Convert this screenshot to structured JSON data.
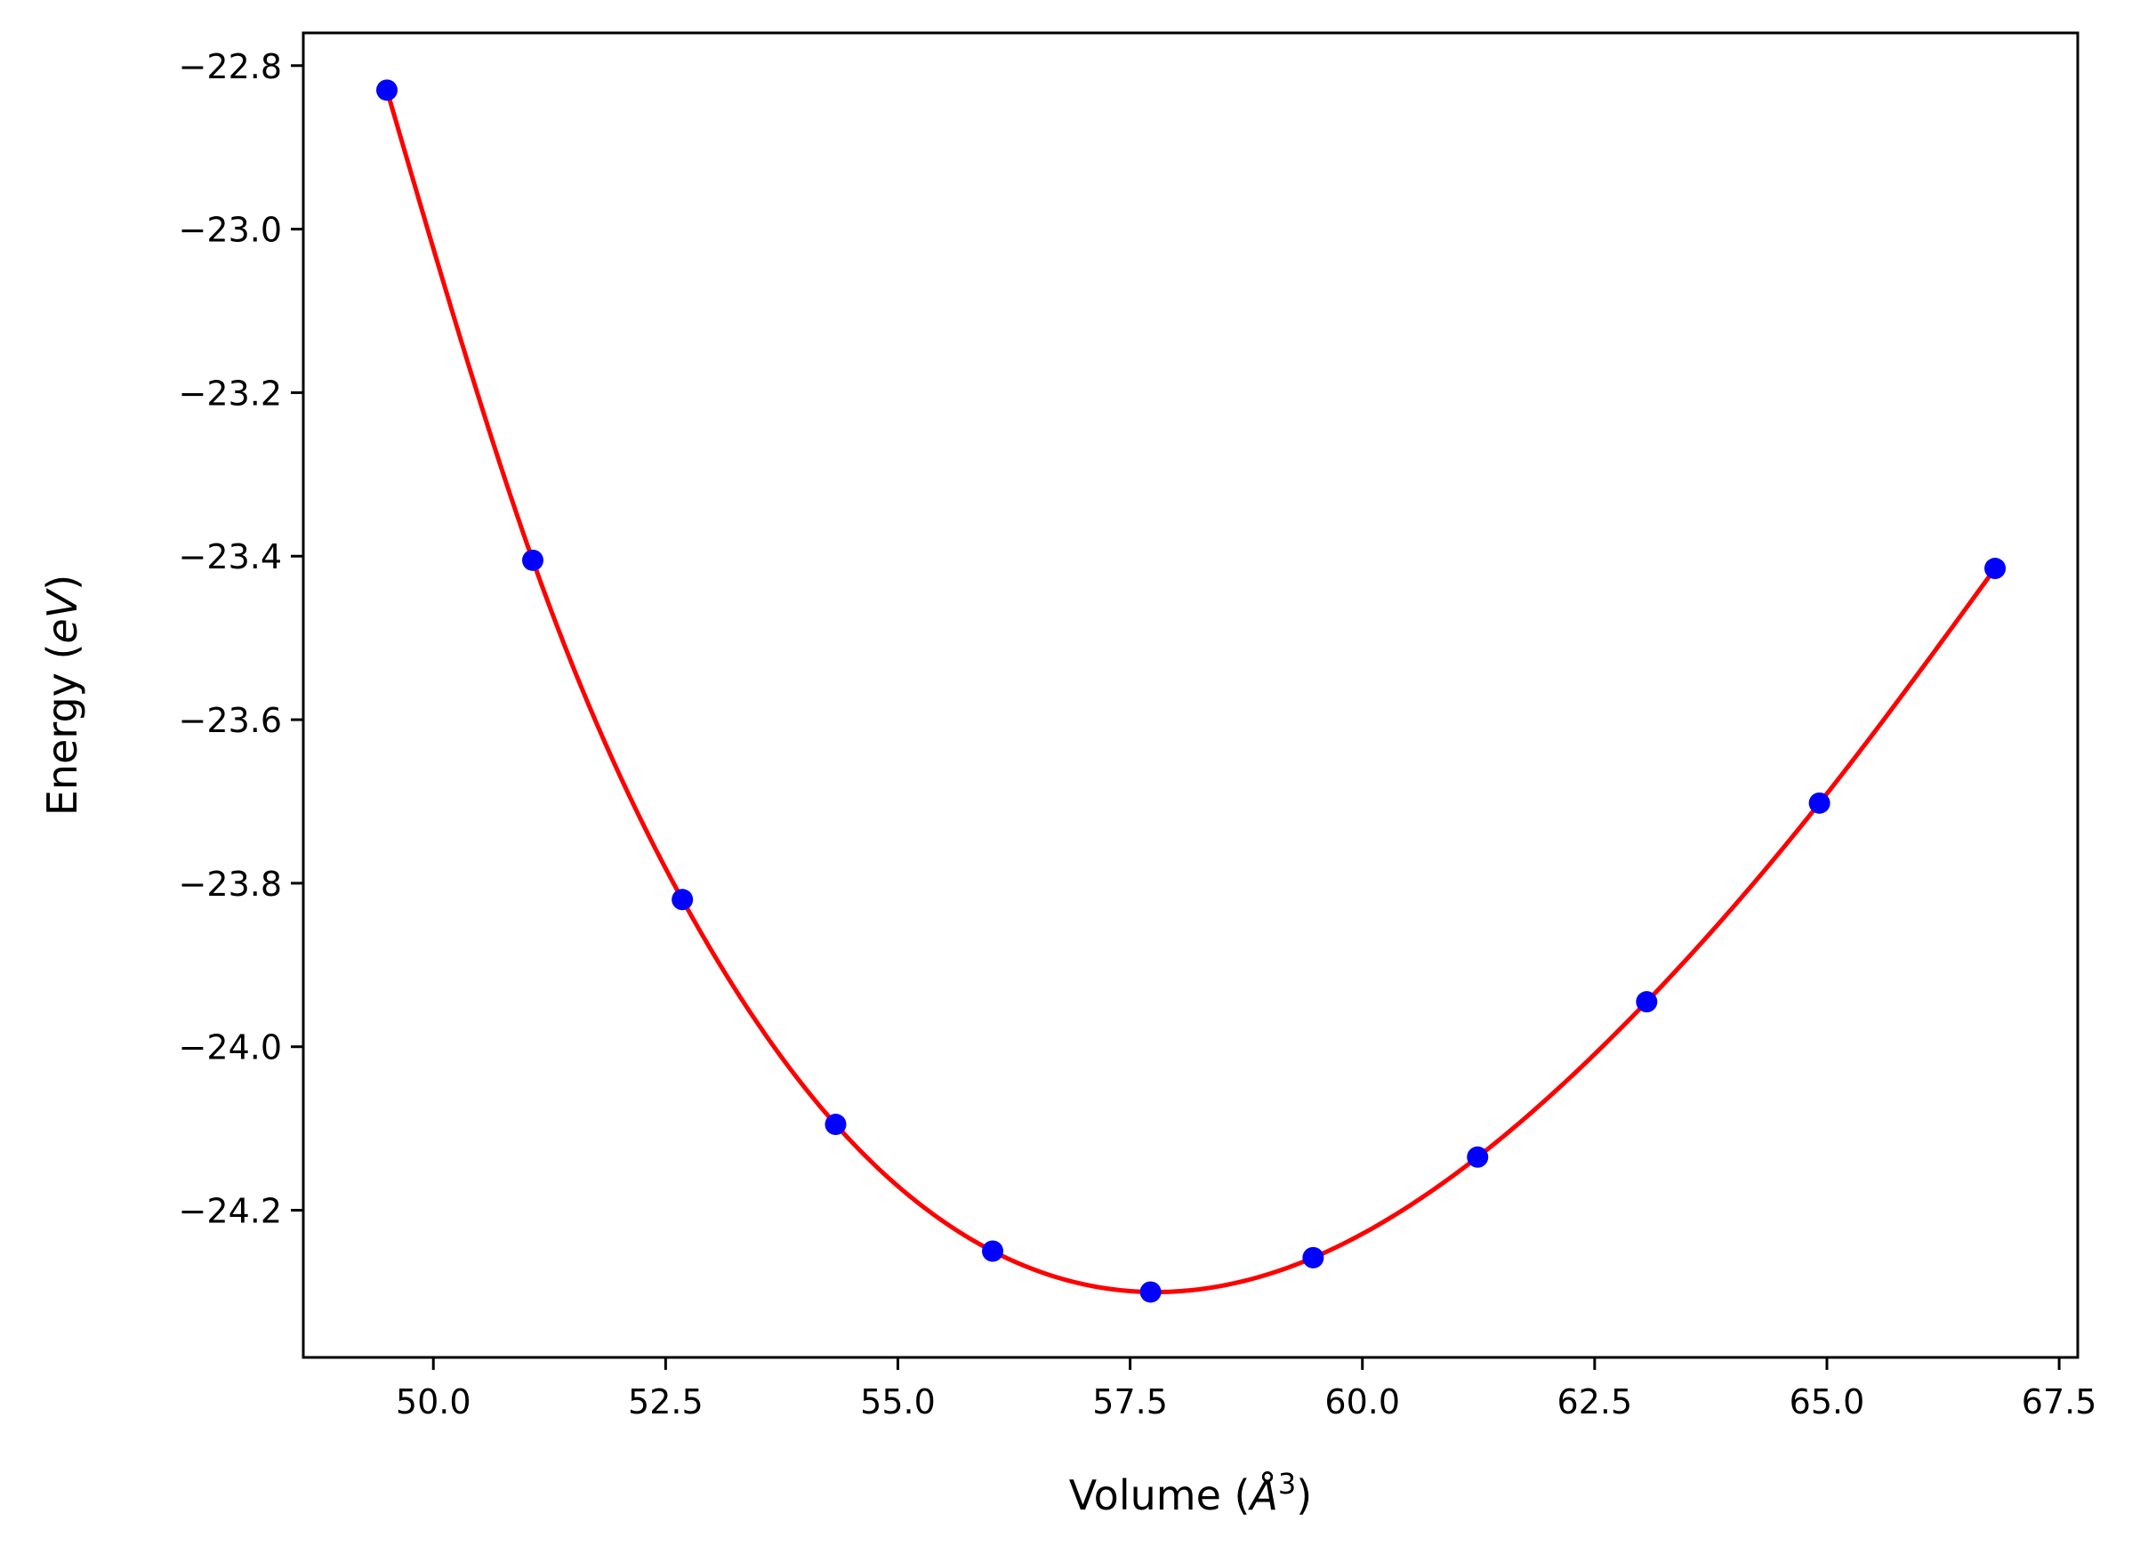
{
  "chart_data": {
    "type": "line",
    "title": "",
    "xlabel": "Volume (Å³)",
    "ylabel": "Energy (eV)",
    "xlabel_parts": {
      "prefix": "Volume (",
      "symbol": "Å",
      "sup": "3",
      "suffix": ")"
    },
    "ylabel_parts": {
      "prefix": "Energy (",
      "unit": "eV",
      "suffix": ")"
    },
    "xlim": [
      48.6,
      67.7
    ],
    "ylim": [
      -24.38,
      -22.76
    ],
    "xticks": [
      50.0,
      52.5,
      55.0,
      57.5,
      60.0,
      62.5,
      65.0,
      67.5
    ],
    "xtick_labels": [
      "50.0",
      "52.5",
      "55.0",
      "57.5",
      "60.0",
      "62.5",
      "65.0",
      "67.5"
    ],
    "yticks": [
      -22.8,
      -23.0,
      -23.2,
      -23.4,
      -23.6,
      -23.8,
      -24.0,
      -24.2
    ],
    "ytick_labels": [
      "−22.8",
      "−23.0",
      "−23.2",
      "−23.4",
      "−23.6",
      "−23.8",
      "−24.0",
      "−24.2"
    ],
    "grid": false,
    "legend": "none",
    "series": [
      {
        "kind": "scatter",
        "color": "#0000ff",
        "x": [
          49.5,
          51.07,
          52.68,
          54.33,
          56.02,
          57.72,
          59.47,
          61.24,
          63.06,
          64.92,
          66.81
        ],
        "y": [
          -22.83,
          -23.405,
          -23.82,
          -24.095,
          -24.25,
          -24.3,
          -24.258,
          -24.135,
          -23.945,
          -23.702,
          -23.415
        ]
      },
      {
        "kind": "fit",
        "color": "#ff0000",
        "x": [
          49.5,
          51.07,
          52.68,
          54.33,
          56.02,
          57.72,
          59.47,
          61.24,
          63.06,
          64.92,
          66.81
        ],
        "y": [
          -22.83,
          -23.405,
          -23.82,
          -24.095,
          -24.25,
          -24.3,
          -24.258,
          -24.135,
          -23.945,
          -23.702,
          -23.415
        ]
      }
    ]
  }
}
